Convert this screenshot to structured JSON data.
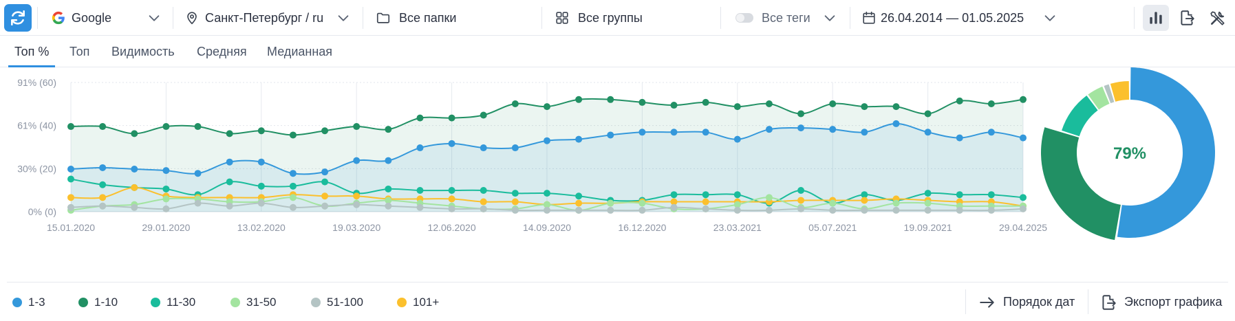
{
  "toolbar": {
    "search_engine": "Google",
    "region": "Санкт-Петербург / ru",
    "folders": "Все папки",
    "groups": "Все группы",
    "tags": "Все теги",
    "date_range": "26.04.2014 — 01.05.2025"
  },
  "tabs": [
    {
      "label": "Топ %",
      "active": true
    },
    {
      "label": "Топ",
      "active": false
    },
    {
      "label": "Видимость",
      "active": false
    },
    {
      "label": "Средняя",
      "active": false
    },
    {
      "label": "Медианная",
      "active": false
    }
  ],
  "legend": [
    {
      "label": "1-3",
      "color": "#3498db"
    },
    {
      "label": "1-10",
      "color": "#219064"
    },
    {
      "label": "11-30",
      "color": "#1abc9c"
    },
    {
      "label": "31-50",
      "color": "#a3e4a0"
    },
    {
      "label": "51-100",
      "color": "#b4c4c4"
    },
    {
      "label": "101+",
      "color": "#fbc02d"
    }
  ],
  "actions": {
    "date_order": "Порядок дат",
    "export": "Экспорт графика"
  },
  "chart_data": [
    {
      "type": "line",
      "y_tick_labels": [
        "0% (0)",
        "30% (20)",
        "61% (40)",
        "91% (60)"
      ],
      "ylim": [
        0,
        91
      ],
      "x_tick_labels": [
        "15.01.2020",
        "29.01.2020",
        "13.02.2020",
        "19.03.2020",
        "12.06.2020",
        "14.09.2020",
        "16.12.2020",
        "23.03.2021",
        "05.07.2021",
        "19.09.2021",
        "29.04.2025"
      ],
      "grid": true,
      "series": [
        {
          "name": "1-10",
          "color": "#219064",
          "fill": true,
          "values": [
            60,
            60,
            55,
            60,
            60,
            55,
            57,
            54,
            57,
            60,
            58,
            66,
            66,
            68,
            76,
            74,
            79,
            79,
            77,
            75,
            77,
            74,
            76,
            69,
            76,
            74,
            74,
            69,
            78,
            76,
            79
          ]
        },
        {
          "name": "1-3",
          "color": "#3498db",
          "fill": true,
          "values": [
            30,
            31,
            30,
            29,
            27,
            35,
            35,
            27,
            28,
            36,
            36,
            45,
            48,
            45,
            45,
            50,
            51,
            54,
            56,
            56,
            56,
            51,
            58,
            59,
            58,
            56,
            62,
            56,
            52,
            56,
            52
          ]
        },
        {
          "name": "11-30",
          "color": "#1abc9c",
          "fill": false,
          "values": [
            23,
            19,
            17,
            16,
            12,
            21,
            18,
            18,
            21,
            13,
            16,
            15,
            15,
            15,
            13,
            13,
            11,
            8,
            8,
            12,
            12,
            12,
            6,
            15,
            6,
            12,
            8,
            13,
            12,
            12,
            10
          ]
        },
        {
          "name": "101+",
          "color": "#fbc02d",
          "fill": false,
          "values": [
            10,
            10,
            17,
            11,
            10,
            10,
            10,
            12,
            11,
            11,
            9,
            9,
            9,
            7,
            7,
            5,
            6,
            6,
            7,
            7,
            7,
            7,
            7,
            8,
            8,
            8,
            9,
            8,
            7,
            7,
            4
          ]
        },
        {
          "name": "31-50",
          "color": "#a3e4a0",
          "fill": false,
          "values": [
            1,
            4,
            5,
            9,
            9,
            7,
            7,
            10,
            4,
            6,
            8,
            6,
            4,
            2,
            2,
            5,
            1,
            6,
            6,
            2,
            2,
            5,
            10,
            3,
            6,
            2,
            6,
            6,
            4,
            4,
            4
          ]
        },
        {
          "name": "51-100",
          "color": "#b4c4c4",
          "fill": false,
          "values": [
            3,
            4,
            3,
            2,
            6,
            4,
            6,
            3,
            4,
            5,
            4,
            3,
            2,
            2,
            1,
            1,
            1,
            1,
            1,
            3,
            2,
            1,
            1,
            2,
            1,
            1,
            1,
            1,
            1,
            1,
            2
          ]
        }
      ]
    },
    {
      "type": "pie",
      "style": "donut",
      "center_label": "79%",
      "slices": [
        {
          "label": "1-3",
          "value": 52,
          "color": "#3498db"
        },
        {
          "label": "1-10",
          "value": 27,
          "color": "#219064"
        },
        {
          "label": "11-30",
          "value": 10,
          "color": "#1abc9c"
        },
        {
          "label": "31-50",
          "value": 4,
          "color": "#a3e4a0"
        },
        {
          "label": "51-100",
          "value": 1.5,
          "color": "#b4c4c4"
        },
        {
          "label": "101+",
          "value": 4.5,
          "color": "#fbc02d"
        }
      ]
    }
  ]
}
